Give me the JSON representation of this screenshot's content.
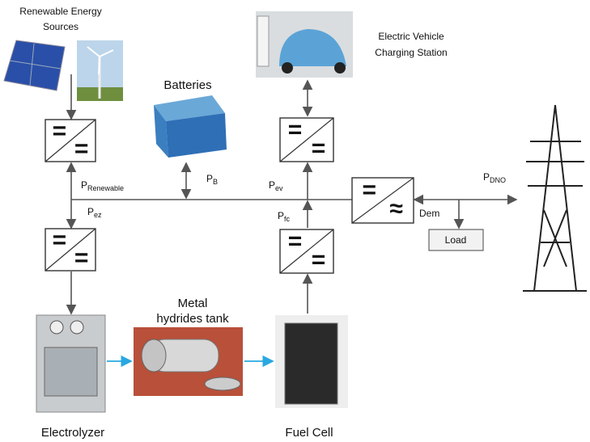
{
  "labels": {
    "renewable": [
      "Renewable Energy",
      "Sources"
    ],
    "batteries": "Batteries",
    "ev_station": [
      "Electric Vehicle",
      "Charging Station"
    ],
    "tank": [
      "Metal",
      "hydrides tank"
    ],
    "electrolyzer": "Electrolyzer",
    "fuel_cell": "Fuel Cell",
    "load": "Load",
    "dem": "Dem"
  },
  "flows": [
    {
      "main": "P",
      "sub": "Renewable"
    },
    {
      "main": "P",
      "sub": "B"
    },
    {
      "main": "P",
      "sub": "ev"
    },
    {
      "main": "P",
      "sub": "ez"
    },
    {
      "main": "P",
      "sub": "fc"
    },
    {
      "main": "P",
      "sub": "DNO"
    }
  ],
  "converters": [
    {
      "top": "=",
      "bottom": "="
    },
    {
      "top": "=",
      "bottom": "="
    },
    {
      "top": "=",
      "bottom": "="
    },
    {
      "top": "=",
      "bottom": "="
    },
    {
      "top": "=",
      "bottom": "≈"
    }
  ]
}
